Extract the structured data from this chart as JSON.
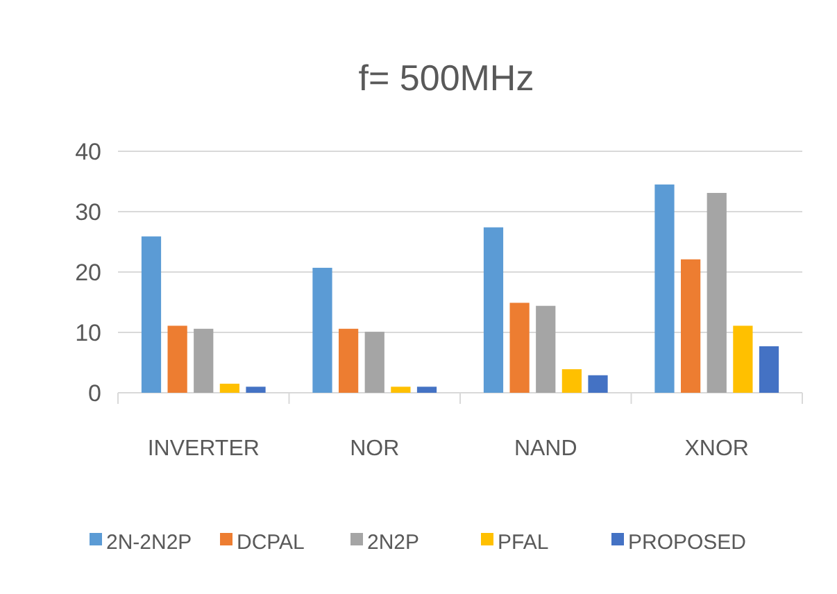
{
  "chart_data": {
    "type": "bar",
    "title": "f= 500MHz",
    "categories": [
      "INVERTER",
      "NOR",
      "NAND",
      "XNOR"
    ],
    "series": [
      {
        "name": "2N-2N2P",
        "color": "#5b9bd5",
        "values": [
          25.9,
          20.7,
          27.4,
          34.5
        ]
      },
      {
        "name": "DCPAL",
        "color": "#ed7d31",
        "values": [
          11.1,
          10.6,
          14.9,
          22.1
        ]
      },
      {
        "name": "2N2P",
        "color": "#a5a5a5",
        "values": [
          10.6,
          10.1,
          14.4,
          33.1
        ]
      },
      {
        "name": "PFAL",
        "color": "#ffc000",
        "values": [
          1.5,
          1,
          3.9,
          11.1
        ]
      },
      {
        "name": "PROPOSED",
        "color": "#4472c4",
        "values": [
          1,
          1,
          2.9,
          7.7
        ]
      }
    ],
    "ylim": [
      0,
      40
    ],
    "yticks": [
      0,
      10,
      20,
      30,
      40
    ],
    "grid": "y",
    "legend": "bottom"
  }
}
